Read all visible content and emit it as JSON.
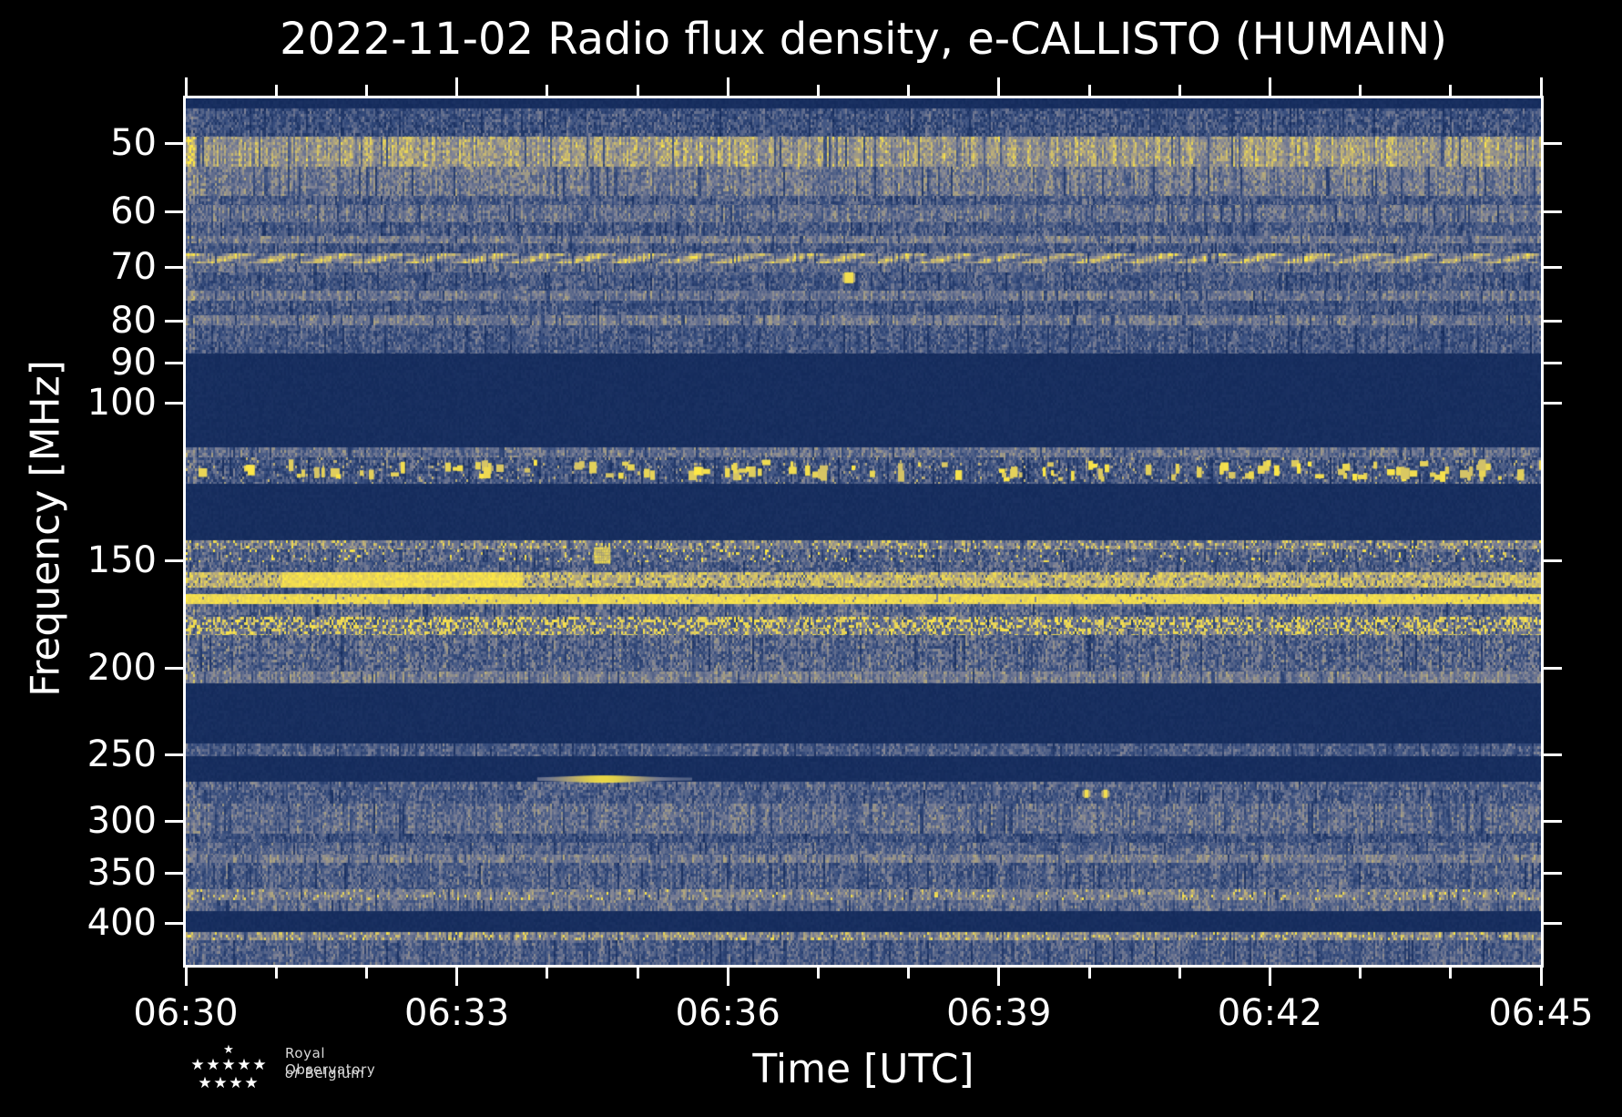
{
  "figure": {
    "title": "2022-11-02 Radio flux density, e-CALLISTO (HUMAIN)",
    "background": "#000000"
  },
  "axes": {
    "xlabel": "Time [UTC]",
    "ylabel": "Frequency [MHz]",
    "x_tick_labels": [
      "06:30",
      "06:33",
      "06:36",
      "06:39",
      "06:42",
      "06:45"
    ],
    "y_tick_labels": [
      "50",
      "60",
      "70",
      "80",
      "90",
      "100",
      "150",
      "200",
      "250",
      "300",
      "350",
      "400"
    ]
  },
  "branding": {
    "line1": "Royal Observatory",
    "line2_word1": "of",
    "line2_word2": "Belgium"
  },
  "chart_data": {
    "type": "heatmap",
    "title": "2022-11-02 Radio flux density, e-CALLISTO (HUMAIN)",
    "xlabel": "Time [UTC]",
    "ylabel": "Frequency [MHz]",
    "instrument": "e-CALLISTO (HUMAIN)",
    "date": "2022-11-02",
    "x_range_utc": [
      "06:30",
      "06:45"
    ],
    "x_major_tick_interval_min": 3,
    "x_minor_tick_interval_min": 1,
    "y_scale": "log",
    "y_range_mhz": [
      44.4,
      447
    ],
    "y_ticks_mhz": [
      50,
      60,
      70,
      80,
      90,
      100,
      150,
      200,
      250,
      300,
      350,
      400
    ],
    "colormap": "cividis",
    "colormap_stops": [
      "#0a2152",
      "#3a5080",
      "#7e8296",
      "#c0b176",
      "#ffe945"
    ],
    "grid": false,
    "legend": "none",
    "bands": [
      {
        "f": [
          44.4,
          45.6
        ],
        "style": "dark"
      },
      {
        "f": [
          45.6,
          49.2
        ],
        "style": "noise",
        "level": 0.26,
        "var": 0.16
      },
      {
        "f": [
          49.2,
          53.3
        ],
        "style": "noise",
        "level": 0.6,
        "var": 0.17
      },
      {
        "f": [
          53.3,
          57.6
        ],
        "style": "noise",
        "level": 0.44,
        "var": 0.16
      },
      {
        "f": [
          57.6,
          59.0
        ],
        "style": "noise",
        "level": 0.3,
        "var": 0.15
      },
      {
        "f": [
          59.0,
          61.9
        ],
        "style": "noise",
        "level": 0.4,
        "var": 0.15
      },
      {
        "f": [
          61.9,
          64.2
        ],
        "style": "noise",
        "level": 0.3,
        "var": 0.15
      },
      {
        "f": [
          64.2,
          65.5
        ],
        "style": "noise",
        "level": 0.45,
        "var": 0.13
      },
      {
        "f": [
          65.5,
          67.4
        ],
        "style": "noise",
        "level": 0.3,
        "var": 0.15
      },
      {
        "f": [
          67.4,
          69.3
        ],
        "style": "scallop",
        "level": 0.55,
        "var": 0.13
      },
      {
        "f": [
          69.3,
          71.0
        ],
        "style": "noise",
        "level": 0.38,
        "var": 0.14
      },
      {
        "f": [
          71.0,
          74.3
        ],
        "style": "noise",
        "level": 0.29,
        "var": 0.15
      },
      {
        "f": [
          74.3,
          76.2
        ],
        "style": "noise",
        "level": 0.42,
        "var": 0.13
      },
      {
        "f": [
          76.2,
          79.0
        ],
        "style": "noise",
        "level": 0.28,
        "var": 0.15
      },
      {
        "f": [
          79.0,
          81.1
        ],
        "style": "noise",
        "level": 0.44,
        "var": 0.13
      },
      {
        "f": [
          81.1,
          87.7
        ],
        "style": "noise",
        "level": 0.28,
        "var": 0.15
      },
      {
        "f": [
          87.7,
          112.3
        ],
        "style": "dark"
      },
      {
        "f": [
          112.3,
          115.1
        ],
        "style": "noise",
        "level": 0.4,
        "var": 0.15
      },
      {
        "f": [
          115.1,
          123.2
        ],
        "style": "aviation",
        "level": 0.27,
        "var": 0.16
      },
      {
        "f": [
          123.2,
          142.4
        ],
        "style": "dark"
      },
      {
        "f": [
          142.4,
          145.9
        ],
        "style": "speckle",
        "level": 0.46,
        "var": 0.2,
        "p": 0.1
      },
      {
        "f": [
          145.9,
          150.7
        ],
        "style": "speckle",
        "level": 0.33,
        "var": 0.17,
        "p": 0.06
      },
      {
        "f": [
          150.7,
          154.7
        ],
        "style": "noise",
        "level": 0.32,
        "var": 0.17
      },
      {
        "f": [
          154.7,
          161.3
        ],
        "style": "patchy",
        "level": 0.76,
        "var": 0.2,
        "strong_t_min": [
          1.05,
          3.72
        ]
      },
      {
        "f": [
          161.3,
          164.0
        ],
        "style": "noise",
        "level": 0.3,
        "var": 0.14
      },
      {
        "f": [
          164.0,
          168.5
        ],
        "style": "solid",
        "level": 0.93,
        "var": 0.06
      },
      {
        "f": [
          168.5,
          174.3
        ],
        "style": "noise",
        "level": 0.36,
        "var": 0.17
      },
      {
        "f": [
          174.3,
          179.9
        ],
        "style": "speckle",
        "level": 0.38,
        "var": 0.15,
        "p": 0.38
      },
      {
        "f": [
          179.9,
          183.4
        ],
        "style": "speckle",
        "level": 0.42,
        "var": 0.15,
        "p": 0.3
      },
      {
        "f": [
          183.4,
          201.7
        ],
        "style": "noise",
        "level": 0.34,
        "var": 0.19
      },
      {
        "f": [
          201.7,
          208.2
        ],
        "style": "noise",
        "level": 0.46,
        "var": 0.14
      },
      {
        "f": [
          208.2,
          243.2
        ],
        "style": "dark"
      },
      {
        "f": [
          243.2,
          251.0
        ],
        "style": "noise",
        "level": 0.3,
        "var": 0.14
      },
      {
        "f": [
          251.0,
          269.2
        ],
        "style": "dark"
      },
      {
        "f": [
          269.2,
          275.8
        ],
        "style": "noise",
        "level": 0.34,
        "var": 0.15
      },
      {
        "f": [
          275.8,
          286.0
        ],
        "style": "noise",
        "level": 0.3,
        "var": 0.15
      },
      {
        "f": [
          286.0,
          311.4
        ],
        "style": "noise",
        "level": 0.38,
        "var": 0.16
      },
      {
        "f": [
          311.4,
          319.9
        ],
        "style": "noise",
        "level": 0.26,
        "var": 0.14
      },
      {
        "f": [
          319.9,
          331.8
        ],
        "style": "noise",
        "level": 0.34,
        "var": 0.15
      },
      {
        "f": [
          331.8,
          340.0
        ],
        "style": "noise",
        "level": 0.46,
        "var": 0.13
      },
      {
        "f": [
          340.0,
          365.5
        ],
        "style": "noise",
        "level": 0.32,
        "var": 0.16
      },
      {
        "f": [
          365.5,
          376.3
        ],
        "style": "speckle",
        "level": 0.46,
        "var": 0.15,
        "p": 0.05
      },
      {
        "f": [
          376.3,
          387.5
        ],
        "style": "noise",
        "level": 0.38,
        "var": 0.14
      },
      {
        "f": [
          387.5,
          409.8
        ],
        "style": "dark"
      },
      {
        "f": [
          409.8,
          418.9
        ],
        "style": "speckle",
        "level": 0.5,
        "var": 0.18,
        "p": 0.08
      },
      {
        "f": [
          418.9,
          447.1
        ],
        "style": "noise",
        "level": 0.31,
        "var": 0.15
      }
    ],
    "features": [
      {
        "kind": "streak",
        "t_min": [
          3.89,
          5.6
        ],
        "peak_t_min": 4.62,
        "f_mhz": 267.5,
        "note": "bright narrowband streak near 06:34-06:35"
      },
      {
        "kind": "block",
        "t_min": [
          4.52,
          4.7
        ],
        "f_mhz": [
          145,
          151
        ],
        "note": "bright burst block near 06:34.5"
      },
      {
        "kind": "dot",
        "t_min": 7.34,
        "f_mhz": 71.9,
        "w": 10,
        "h": 12,
        "note": "isolated bright point ~06:37.3"
      },
      {
        "kind": "dot",
        "t_min": 9.97,
        "f_mhz": 278.5,
        "w": 5,
        "h": 9,
        "note": "bright point ~06:40.0"
      },
      {
        "kind": "dot",
        "t_min": 10.18,
        "f_mhz": 278.5,
        "w": 5,
        "h": 9,
        "note": "bright point ~06:40.2"
      }
    ]
  }
}
